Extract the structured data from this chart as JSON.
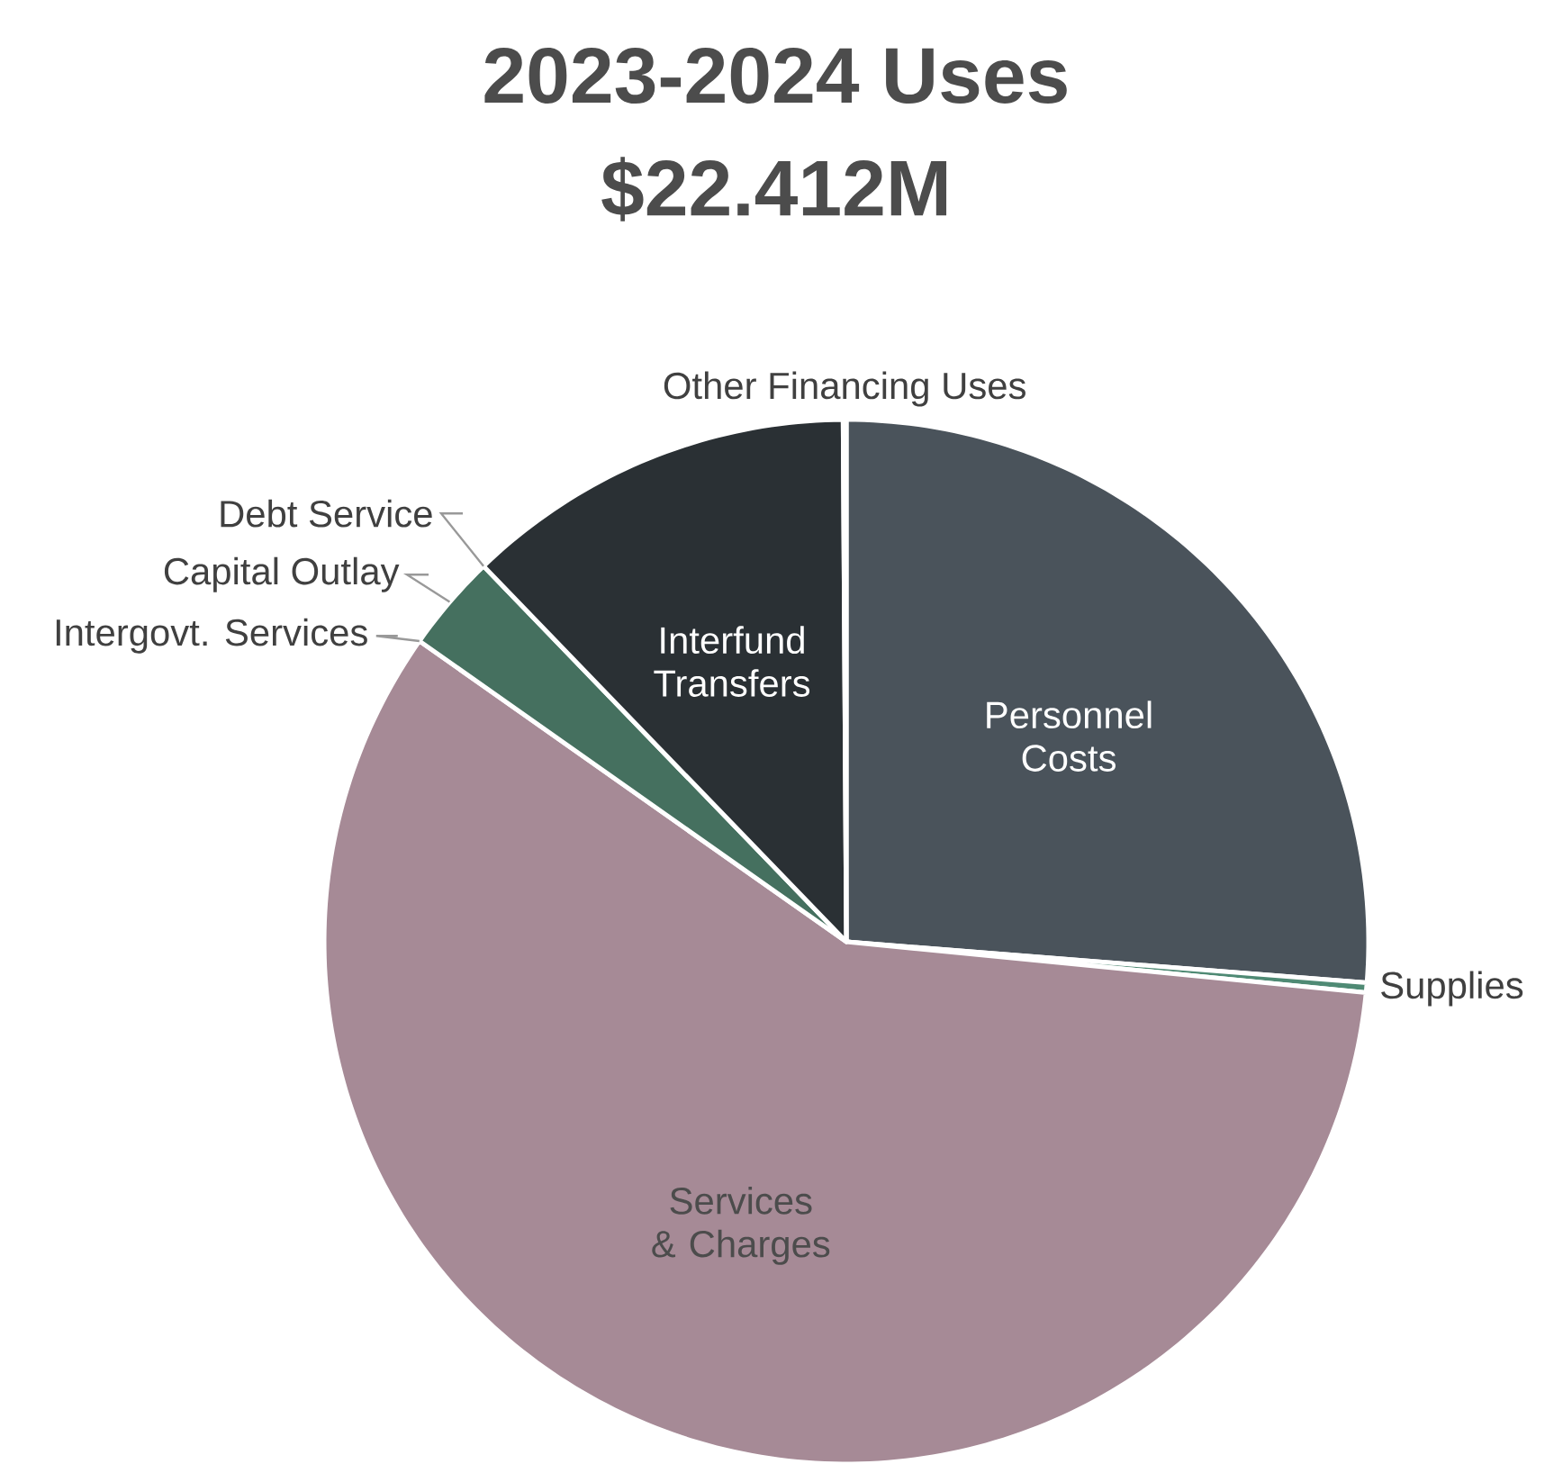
{
  "chart_data": {
    "type": "pie",
    "title": "2023-2024 Uses",
    "subtitle": "$22.412M",
    "categories": [
      "Personnel Costs",
      "Supplies",
      "Services & Charges",
      "Intergovt. Services",
      "Capital Outlay",
      "Debt Service",
      "Interfund Transfers",
      "Other Financing Uses"
    ],
    "values": [
      26.2,
      0.3,
      58.1,
      null,
      3.0,
      null,
      12.1,
      0.1
    ],
    "colors": [
      "#4a535b",
      "#4f8a74",
      "#a68a96",
      "#6b8f80",
      "#45705f",
      "#3a4248",
      "#2a3034",
      "#5d666d"
    ]
  }
}
